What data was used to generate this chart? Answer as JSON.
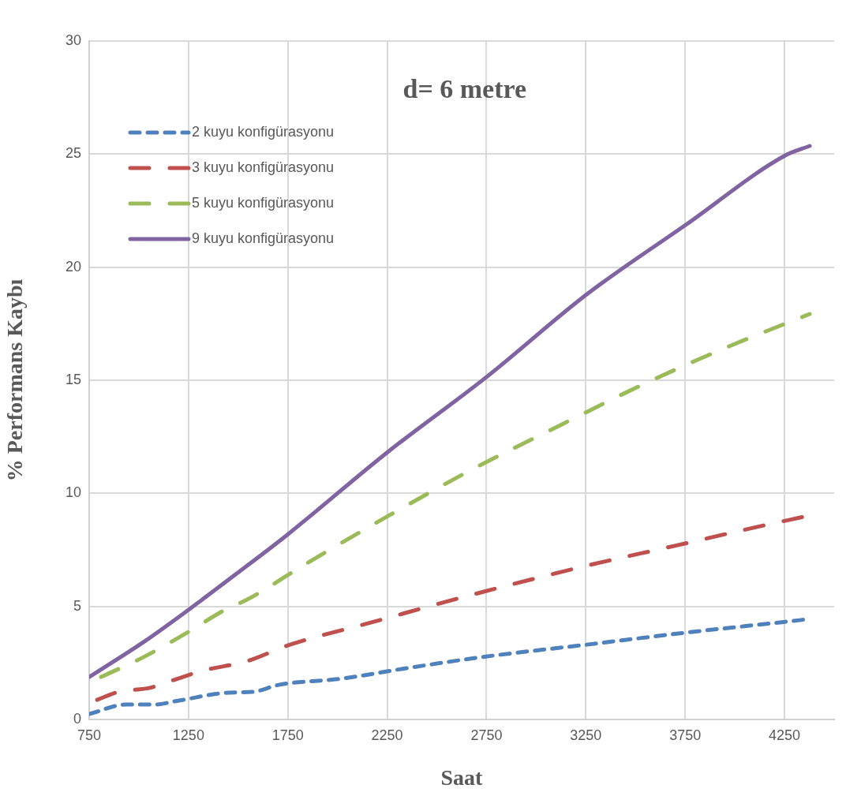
{
  "chart_data": {
    "type": "line",
    "title": "d= 6 metre",
    "xlabel": "Saat",
    "ylabel": "% Performans Kaybı",
    "xlim": [
      750,
      4500
    ],
    "xticks": [
      750,
      1250,
      1750,
      2250,
      2750,
      3250,
      3750,
      4250
    ],
    "ylim": [
      0,
      30
    ],
    "yticks": [
      0,
      5,
      10,
      15,
      20,
      25,
      30
    ],
    "grid": true,
    "legend": "top left",
    "marker": "none",
    "series": [
      {
        "name": "2 kuyu konfigürasyonu",
        "color": "#4f81bd",
        "line_style": "dotted",
        "x": [
          750,
          937,
          1076,
          1203,
          1454,
          1573,
          1704,
          2023,
          2349,
          2754,
          3255,
          3753,
          4254,
          4365
        ],
        "values": [
          0.24,
          0.66,
          0.66,
          0.84,
          1.19,
          1.22,
          1.53,
          1.81,
          2.27,
          2.79,
          3.31,
          3.84,
          4.32,
          4.43
        ]
      },
      {
        "name": "3 kuyu konfigürasyonu",
        "color": "#c0504d",
        "line_style": "dashed",
        "x": [
          790,
          897,
          1056,
          1116,
          1323,
          1545,
          1752,
          2182,
          2615,
          3255,
          3693,
          4130,
          4345
        ],
        "values": [
          0.87,
          1.22,
          1.4,
          1.57,
          2.16,
          2.58,
          3.28,
          4.32,
          5.37,
          6.8,
          7.67,
          8.55,
          8.96
        ]
      },
      {
        "name": "5 kuyu konfigürasyonu",
        "color": "#9bbb59",
        "line_style": "dashed",
        "x": [
          810,
          1024,
          1243,
          1434,
          1545,
          1852,
          2261,
          2687,
          3112,
          3534,
          3971,
          4377
        ],
        "values": [
          1.88,
          2.76,
          3.84,
          4.85,
          5.3,
          6.94,
          9.03,
          11.1,
          12.97,
          14.8,
          16.5,
          17.93
        ]
      },
      {
        "name": "9 kuyu konfigürasyonu",
        "color": "#8064a2",
        "line_style": "solid",
        "x": [
          750,
          1028,
          1250,
          1500,
          1752,
          2249,
          2754,
          3255,
          3753,
          4254,
          4377
        ],
        "values": [
          1.88,
          3.45,
          4.85,
          6.5,
          8.2,
          11.8,
          15.17,
          18.8,
          21.87,
          24.94,
          25.36
        ]
      }
    ]
  }
}
